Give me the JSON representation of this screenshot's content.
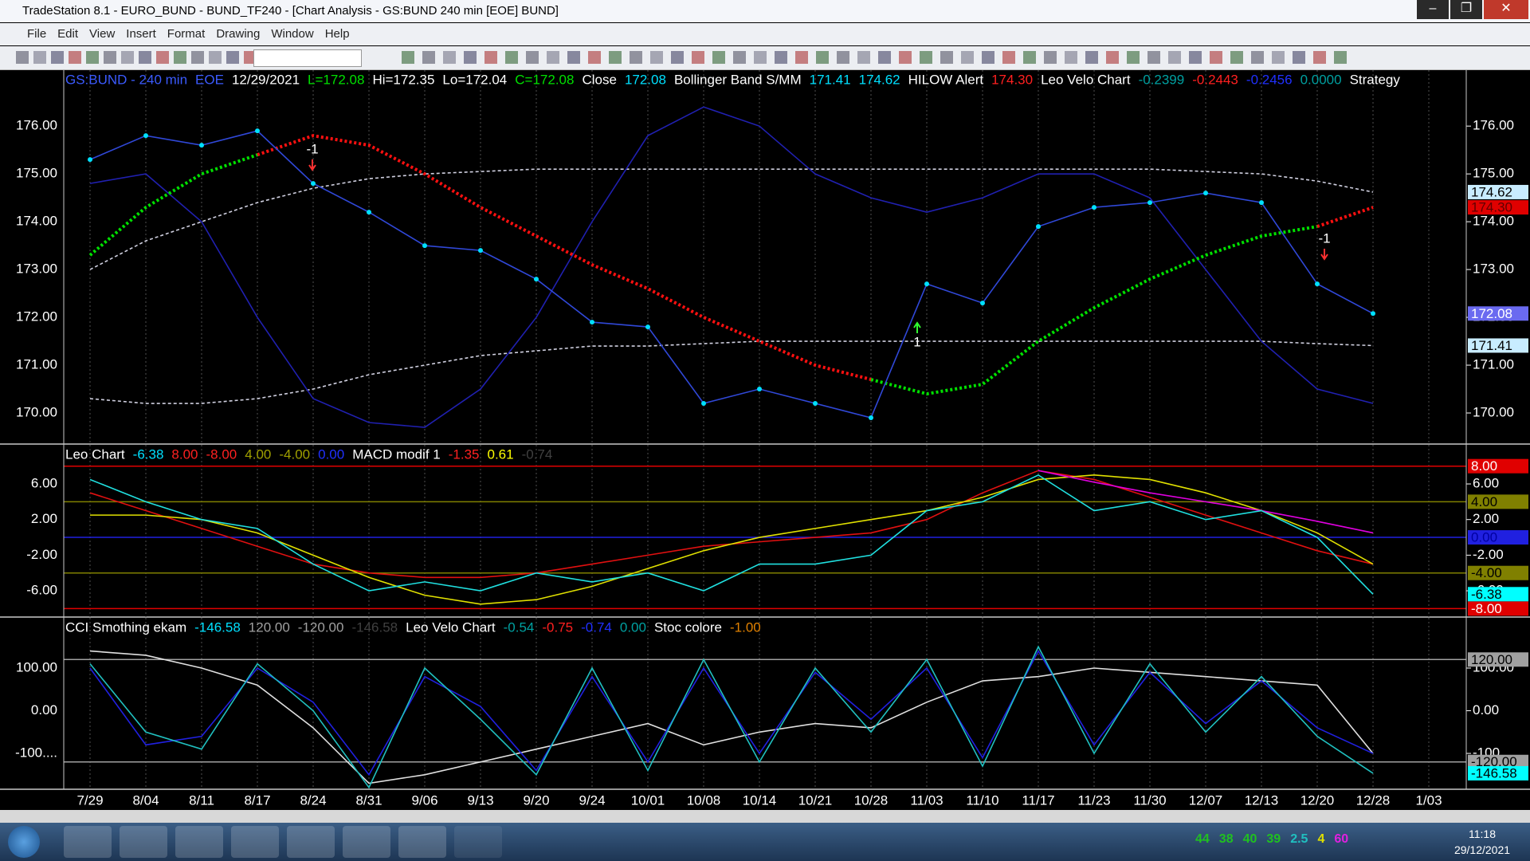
{
  "window": {
    "title": "TradeStation 8.1 - EURO_BUND - BUND_TF240 - [Chart Analysis - GS:BUND  240 min  [EOE] BUND]"
  },
  "menu": [
    "File",
    "Edit",
    "View",
    "Insert",
    "Format",
    "Drawing",
    "Window",
    "Help"
  ],
  "chart_data": {
    "type": "line",
    "categories": [
      "7/29",
      "8/04",
      "8/11",
      "8/17",
      "8/24",
      "8/31",
      "9/06",
      "9/13",
      "9/20",
      "9/24",
      "10/01",
      "10/08",
      "10/14",
      "10/21",
      "10/28",
      "11/03",
      "11/10",
      "11/17",
      "11/23",
      "11/30",
      "12/07",
      "12/13",
      "12/20",
      "12/28",
      "1/03"
    ],
    "panes": [
      {
        "header": [
          {
            "text": "GS:BUND - 240 min",
            "color": "#3b5bff"
          },
          {
            "text": "EOE",
            "color": "#3b5bff"
          },
          {
            "text": "12/29/2021",
            "color": "#ffffff"
          },
          {
            "text": "L=172.08",
            "color": "#00e000"
          },
          {
            "text": "Hi=172.35",
            "color": "#ffffff"
          },
          {
            "text": "Lo=172.04",
            "color": "#ffffff"
          },
          {
            "text": "C=172.08",
            "color": "#00e000"
          },
          {
            "text": "Close",
            "color": "#ffffff"
          },
          {
            "text": "172.08",
            "color": "#00e0ff"
          },
          {
            "text": "Bollinger Band S/MM",
            "color": "#ffffff"
          },
          {
            "text": "171.41",
            "color": "#00e0ff"
          },
          {
            "text": "174.62",
            "color": "#00e0ff"
          },
          {
            "text": "HILOW Alert",
            "color": "#ffffff"
          },
          {
            "text": "174.30",
            "color": "#ff2020"
          },
          {
            "text": "Leo Velo Chart",
            "color": "#ffffff"
          },
          {
            "text": "-0.2399",
            "color": "#00a0a0"
          },
          {
            "text": "-0.2443",
            "color": "#ff2020"
          },
          {
            "text": "-0.2456",
            "color": "#2030ff"
          },
          {
            "text": "0.0000",
            "color": "#00a0a0"
          },
          {
            "text": "Strategy",
            "color": "#ffffff"
          }
        ],
        "ylim": [
          169.35,
          177.17
        ],
        "yticks": [
          {
            "value": 170,
            "label": "170.00"
          },
          {
            "value": 171,
            "label": "171.00"
          },
          {
            "value": 172,
            "label": "172.00"
          },
          {
            "value": 173,
            "label": "173.00"
          },
          {
            "value": 174,
            "label": "174.00"
          },
          {
            "value": 175,
            "label": "175.00"
          },
          {
            "value": 176,
            "label": "176.00"
          }
        ],
        "series": [
          {
            "color": "#d0d0e0",
            "dash": "4 3",
            "values": [
              173.0,
              173.6,
              174.0,
              174.4,
              174.7,
              174.9,
              175.0,
              175.05,
              175.1,
              175.1,
              175.1,
              175.1,
              175.1,
              175.1,
              175.1,
              175.1,
              175.1,
              175.1,
              175.1,
              175.1,
              175.05,
              175.0,
              174.85,
              174.62,
              null
            ]
          },
          {
            "color": "#d0d0e0",
            "dash": "4 3",
            "values": [
              170.3,
              170.2,
              170.2,
              170.3,
              170.5,
              170.8,
              171.0,
              171.2,
              171.3,
              171.4,
              171.4,
              171.45,
              171.5,
              171.5,
              171.5,
              171.5,
              171.5,
              171.5,
              171.5,
              171.5,
              171.5,
              171.5,
              171.45,
              171.41,
              null
            ]
          },
          {
            "color": "#2020b0",
            "values": [
              174.8,
              175.0,
              174.0,
              172.0,
              170.3,
              169.8,
              169.7,
              170.5,
              172.0,
              174.0,
              175.8,
              176.4,
              176.0,
              175.0,
              174.5,
              174.2,
              174.5,
              175.0,
              175.0,
              174.5,
              173.0,
              171.5,
              170.5,
              170.2,
              null
            ]
          },
          {
            "color": "#00e000",
            "dash": "3 3",
            "width": 4,
            "values": [
              173.3,
              174.3,
              175.0,
              175.4,
              null,
              null,
              null,
              null,
              null,
              null,
              null,
              null,
              null,
              null,
              170.7,
              170.4,
              170.6,
              171.5,
              172.2,
              172.8,
              173.3,
              173.7,
              173.9,
              null,
              null
            ]
          },
          {
            "color": "#ff1010",
            "dash": "3 3",
            "width": 4,
            "values": [
              null,
              null,
              null,
              175.4,
              175.8,
              175.6,
              175.0,
              174.3,
              173.7,
              173.1,
              172.6,
              172.0,
              171.5,
              171.0,
              170.7,
              null,
              null,
              null,
              null,
              null,
              null,
              null,
              173.9,
              174.3,
              null
            ]
          },
          {
            "color": "#3048d8",
            "marker_color": "#00e0ff",
            "values": [
              175.3,
              175.8,
              175.6,
              175.9,
              174.8,
              174.2,
              173.5,
              173.4,
              172.8,
              171.9,
              171.8,
              170.2,
              170.5,
              170.2,
              169.9,
              172.7,
              172.3,
              173.9,
              174.3,
              174.4,
              174.6,
              174.4,
              172.7,
              172.08,
              null
            ]
          }
        ],
        "levels": [],
        "price_boxes": [
          {
            "value": 174.62,
            "label": "174.62",
            "color": "#c8ecff",
            "text_color": "#000000"
          },
          {
            "value": 174.3,
            "label": "174.30",
            "color": "#e00000",
            "text_color": "#600000"
          },
          {
            "value": 172.08,
            "label": "172.08",
            "color": "#6a6af0",
            "text_color": "#ffffff"
          },
          {
            "value": 171.41,
            "label": "171.41",
            "color": "#c8ecff",
            "text_color": "#000000"
          }
        ],
        "annotations": [
          "-1",
          "-1",
          "1"
        ]
      },
      {
        "header": [
          {
            "text": "Leo Chart",
            "color": "#ffffff"
          },
          {
            "text": "-6.38",
            "color": "#00e0ff"
          },
          {
            "text": "8.00",
            "color": "#ff2020"
          },
          {
            "text": "-8.00",
            "color": "#ff2020"
          },
          {
            "text": "4.00",
            "color": "#a0a000"
          },
          {
            "text": "-4.00",
            "color": "#a0a000"
          },
          {
            "text": "0.00",
            "color": "#2030ff"
          },
          {
            "text": "MACD modif 1",
            "color": "#ffffff"
          },
          {
            "text": "-1.35",
            "color": "#ff2020"
          },
          {
            "text": "0.61",
            "color": "#ffff00"
          },
          {
            "text": "-0.74",
            "color": "#404040"
          }
        ],
        "ylim": [
          -8.95,
          10.39
        ],
        "yticks": [
          {
            "value": 6,
            "label": "6.00"
          },
          {
            "value": 2,
            "label": "2.00"
          },
          {
            "value": -2,
            "label": "-2.00"
          },
          {
            "value": -6,
            "label": "-6.00"
          }
        ],
        "series": [
          {
            "color": "#e01010",
            "values": [
              5,
              3,
              1,
              -1,
              -3,
              -4,
              -4.5,
              -4.5,
              -4,
              -3,
              -2,
              -1,
              -0.5,
              0,
              0.5,
              2,
              5,
              7.5,
              6.5,
              4.5,
              2.5,
              0.5,
              -1.5,
              -3,
              null
            ]
          },
          {
            "color": "#e0e000",
            "values": [
              2.5,
              2.5,
              2,
              0.5,
              -2,
              -4.5,
              -6.5,
              -7.5,
              -7,
              -5.5,
              -3.5,
              -1.5,
              0,
              1,
              2,
              3,
              4.5,
              6.5,
              7,
              6.5,
              5,
              3,
              0.5,
              -3,
              null
            ]
          },
          {
            "color": "#e000e0",
            "values": [
              null,
              null,
              null,
              null,
              null,
              null,
              null,
              null,
              null,
              null,
              null,
              null,
              null,
              null,
              null,
              null,
              null,
              7.5,
              6.2,
              5,
              4,
              3,
              1.8,
              0.5,
              null
            ]
          },
          {
            "color": "#20e0e0",
            "values": [
              6.5,
              4,
              2,
              1,
              -3,
              -6,
              -5,
              -6,
              -4,
              -5,
              -4,
              -6,
              -3,
              -3,
              -2,
              3,
              4,
              7,
              3,
              4,
              2,
              3,
              0,
              -6.38,
              null
            ]
          }
        ],
        "levels": [
          {
            "value": 8,
            "label": "8.00",
            "color": "#e00000",
            "text_color": "#ffffff"
          },
          {
            "value": 4,
            "label": "4.00",
            "color": "#808000",
            "text_color": "#000000"
          },
          {
            "value": 0,
            "label": "0.00",
            "color": "#2020e0",
            "text_color": "#0000a0"
          },
          {
            "value": -4,
            "label": "-4.00",
            "color": "#808000",
            "text_color": "#000000"
          },
          {
            "value": -8,
            "label": "-8.00",
            "color": "#e00000",
            "text_color": "#ffffff"
          }
        ],
        "price_boxes": [
          {
            "value": -6.38,
            "label": "-6.38",
            "color": "#00ffff",
            "text_color": "#000000"
          }
        ],
        "annotations": []
      },
      {
        "header": [
          {
            "text": "CCI Smothing ekam",
            "color": "#ffffff"
          },
          {
            "text": "-146.58",
            "color": "#00e0ff"
          },
          {
            "text": "120.00",
            "color": "#a0a0a0"
          },
          {
            "text": "-120.00",
            "color": "#a0a0a0"
          },
          {
            "text": "-146.58",
            "color": "#404040"
          },
          {
            "text": "Leo Velo Chart",
            "color": "#ffffff"
          },
          {
            "text": "-0.54",
            "color": "#00a0a0"
          },
          {
            "text": "-0.75",
            "color": "#ff2020"
          },
          {
            "text": "-0.74",
            "color": "#2030ff"
          },
          {
            "text": "0.00",
            "color": "#00a0a0"
          },
          {
            "text": "Stoc colore",
            "color": "#ffffff"
          },
          {
            "text": "-1.00",
            "color": "#e08000"
          }
        ],
        "ylim": [
          -184,
          217.7
        ],
        "yticks": [
          {
            "value": 100,
            "label": "100.00"
          },
          {
            "value": 0,
            "label": "0.00"
          },
          {
            "value": -100,
            "label": "-100...."
          }
        ],
        "series": [
          {
            "color": "#e0e0e0",
            "values": [
              140,
              130,
              100,
              60,
              -40,
              -170,
              -150,
              -120,
              -90,
              -60,
              -30,
              -80,
              -50,
              -30,
              -40,
              20,
              70,
              80,
              100,
              90,
              80,
              70,
              60,
              -100,
              null
            ]
          },
          {
            "color": "#2020e0",
            "values": [
              100,
              -80,
              -60,
              100,
              20,
              -150,
              80,
              10,
              -140,
              80,
              -120,
              100,
              -100,
              90,
              -20,
              100,
              -110,
              140,
              -80,
              90,
              -30,
              70,
              -40,
              -100,
              null
            ]
          },
          {
            "color": "#20c0c0",
            "values": [
              110,
              -50,
              -90,
              110,
              0,
              -180,
              100,
              -20,
              -150,
              100,
              -140,
              120,
              -120,
              100,
              -50,
              120,
              -130,
              150,
              -100,
              110,
              -50,
              80,
              -60,
              -146.58,
              null
            ]
          }
        ],
        "levels": [
          {
            "value": 120,
            "label": "120.00",
            "color": "#a0a0a0",
            "text_color": "#000000"
          },
          {
            "value": -120,
            "label": "-120.00",
            "color": "#a0a0a0",
            "text_color": "#000000"
          }
        ],
        "price_boxes": [
          {
            "value": -146.58,
            "label": "-146.58",
            "color": "#00ffff",
            "text_color": "#000000"
          }
        ],
        "annotations": []
      }
    ]
  },
  "taskbar": {
    "tray": [
      {
        "text": "44",
        "color": "#20c020"
      },
      {
        "text": "38",
        "color": "#20c020"
      },
      {
        "text": "40",
        "color": "#20c020"
      },
      {
        "text": "39",
        "color": "#20c020"
      },
      {
        "text": "2.5",
        "color": "#20c0c0"
      },
      {
        "text": "4",
        "color": "#e0e000"
      },
      {
        "text": "60",
        "color": "#e020e0"
      }
    ],
    "time": "11:18",
    "date": "29/12/2021"
  }
}
